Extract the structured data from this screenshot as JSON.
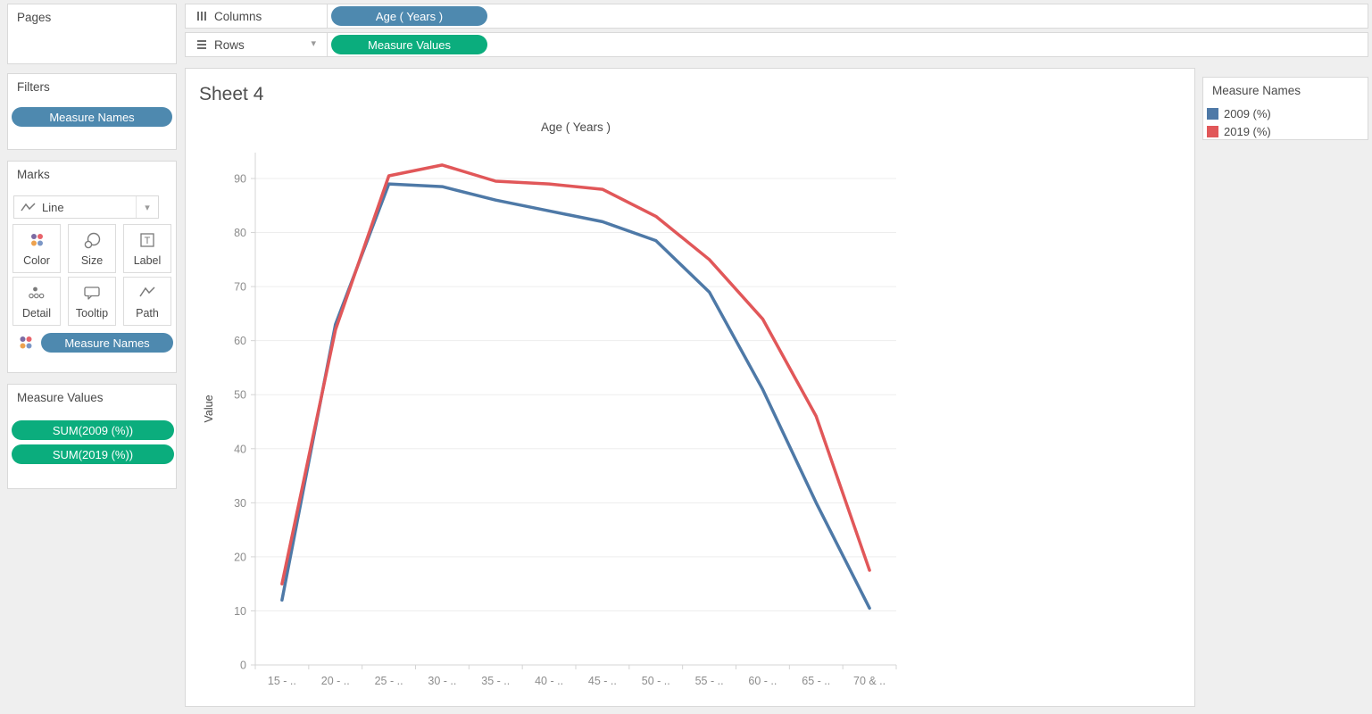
{
  "shelves": {
    "columns_label": "Columns",
    "rows_label": "Rows",
    "columns_pill": "Age ( Years )",
    "rows_pill": "Measure Values"
  },
  "panels": {
    "pages": {
      "title": "Pages"
    },
    "filters": {
      "title": "Filters",
      "pill": "Measure Names"
    },
    "marks": {
      "title": "Marks",
      "mark_type": "Line",
      "buttons": [
        {
          "label": "Color"
        },
        {
          "label": "Size"
        },
        {
          "label": "Label"
        },
        {
          "label": "Detail"
        },
        {
          "label": "Tooltip"
        },
        {
          "label": "Path"
        }
      ],
      "pill": "Measure Names"
    },
    "measure_values": {
      "title": "Measure Values",
      "pills": [
        "SUM(2009 (%))",
        "SUM(2019 (%))"
      ]
    }
  },
  "sheet": {
    "title": "Sheet 4"
  },
  "legend": {
    "title": "Measure Names",
    "items": [
      {
        "label": "2009 (%)",
        "color": "#4e79a7"
      },
      {
        "label": "2019 (%)",
        "color": "#e15759"
      }
    ]
  },
  "colors": {
    "dimension_pill": "#4e89af",
    "measure_pill": "#0bad7d",
    "series_2009": "#4e79a7",
    "series_2019": "#e15759",
    "gridline": "#ededed",
    "axis_line": "#d4d4d4",
    "tick_label": "#8c8c8c",
    "axis_title": "#4a4a4a"
  },
  "chart_data": {
    "type": "line",
    "title": "Age ( Years )",
    "xlabel": "Age ( Years )",
    "ylabel": "Value",
    "categories": [
      "15 - ..",
      "20 - ..",
      "25 - ..",
      "30 - ..",
      "35 - ..",
      "40 - ..",
      "45 - ..",
      "50 - ..",
      "55 - ..",
      "60 - ..",
      "65 - ..",
      "70 & .."
    ],
    "series": [
      {
        "name": "2009 (%)",
        "color": "#4e79a7",
        "values": [
          12,
          63,
          89,
          88.5,
          86,
          84,
          82,
          78.5,
          69,
          51,
          30,
          10.5
        ]
      },
      {
        "name": "2019 (%)",
        "color": "#e15759",
        "values": [
          15,
          62,
          90.5,
          92.5,
          89.5,
          89,
          88,
          83,
          75,
          64,
          46,
          17.5
        ]
      }
    ],
    "yticks": [
      0,
      10,
      20,
      30,
      40,
      50,
      60,
      70,
      80,
      90
    ],
    "ylim": [
      0,
      95
    ],
    "grid": true,
    "legend_position": "right"
  }
}
